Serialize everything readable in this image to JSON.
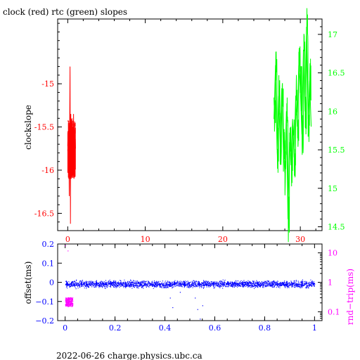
{
  "title": "clock (red) rtc (green) slopes",
  "footer": "2022-06-26 charge.physics.ubc.ca",
  "colors": {
    "clock": "#ff0000",
    "rtc": "#00ff00",
    "offset": "#0000ff",
    "rndtrip": "#ff00ff",
    "axis_black": "#000000"
  },
  "chart_data": [
    {
      "id": "slopes",
      "type": "line",
      "ylabel_left": "clockslope",
      "ylabel_right": "",
      "xlim": [
        -1.3,
        32.8
      ],
      "ylim_left": [
        -16.7,
        -14.25
      ],
      "ylim_right": [
        14.45,
        17.2
      ],
      "xticks": [
        0,
        10,
        20,
        30
      ],
      "yticks_left": [
        -15,
        -15.5,
        -16,
        -16.5
      ],
      "yticks_left_labels": [
        "-15",
        "-15.5",
        "-16",
        "-16.5"
      ],
      "yticks_right": [
        17,
        16.5,
        16,
        15.5,
        15,
        14.5
      ],
      "yticks_right_labels": [
        "17",
        "16.5",
        "16",
        "15.5",
        "15",
        "14.5"
      ],
      "series": [
        {
          "axis": "left",
          "x": [
            0.0,
            0.05,
            0.1,
            0.15,
            0.2,
            0.25,
            0.3,
            0.35,
            0.4,
            0.45,
            0.5,
            0.55,
            0.6,
            0.65,
            0.7,
            0.75,
            0.8,
            0.85,
            0.9,
            0.95,
            1.0
          ],
          "y": [
            -15.72,
            -15.55,
            -15.9,
            -15.65,
            -16.3,
            -15.45,
            -14.8,
            -16.62,
            -15.35,
            -16.1,
            -15.6,
            -15.4,
            -16.05,
            -15.7,
            -15.95,
            -15.35,
            -16.1,
            -15.5,
            -15.85,
            -15.6,
            -15.75
          ]
        },
        {
          "axis": "right",
          "x": [
            26.6,
            26.8,
            27.0,
            27.2,
            27.4,
            27.6,
            27.8,
            28.0,
            28.2,
            28.4,
            28.6,
            28.8,
            29.0,
            29.2,
            29.4,
            29.6,
            29.8,
            30.0,
            30.2,
            30.4,
            30.6,
            30.8,
            31.0,
            31.2,
            31.4
          ],
          "y": [
            15.9,
            16.6,
            15.5,
            16.2,
            15.6,
            16.3,
            15.5,
            15.2,
            16.0,
            14.6,
            15.6,
            15.3,
            15.9,
            15.4,
            16.2,
            15.8,
            16.6,
            16.3,
            15.7,
            16.8,
            16.0,
            17.1,
            15.9,
            16.4,
            15.8
          ]
        }
      ]
    },
    {
      "id": "offset",
      "type": "scatter",
      "ylabel_left": "offset(ms)",
      "ylabel_right": "rnd−trip(ms)",
      "xlim": [
        -0.03,
        1.03
      ],
      "ylim_left": [
        -0.2,
        0.2
      ],
      "ylim_right_log": [
        0.05,
        20
      ],
      "xticks": [
        0,
        0.2,
        0.4,
        0.6,
        0.8,
        1
      ],
      "xticks_labels": [
        "0",
        "0.2",
        "0.4",
        "0.6",
        "0.8",
        "1"
      ],
      "yticks_left": [
        0.2,
        0.1,
        0,
        -0.1,
        -0.2
      ],
      "yticks_left_labels": [
        "0.2",
        "0.1",
        "0",
        "−0.1",
        "−0.2"
      ],
      "yticks_right": [
        10,
        1,
        0.1
      ],
      "yticks_right_labels": [
        "10",
        "1",
        "0.1"
      ],
      "series": [
        {
          "axis": "left",
          "x_range": [
            0.0,
            1.0
          ],
          "y_center": -0.01,
          "y_spread": 0.025,
          "outliers": [
            {
              "x": 0.42,
              "y": -0.08
            },
            {
              "x": 0.43,
              "y": -0.13
            },
            {
              "x": 0.46,
              "y": -0.05
            },
            {
              "x": 0.52,
              "y": -0.08
            },
            {
              "x": 0.53,
              "y": -0.14
            },
            {
              "x": 0.54,
              "y": -0.19
            },
            {
              "x": 0.55,
              "y": -0.12
            }
          ]
        },
        {
          "axis": "right",
          "x_range": [
            0.0,
            0.03
          ],
          "y_values_range": [
            0.15,
            0.3
          ],
          "outliers": [
            {
              "x": 0.0,
              "y": 18
            },
            {
              "x": 0.01,
              "y": 12
            }
          ]
        }
      ]
    }
  ]
}
